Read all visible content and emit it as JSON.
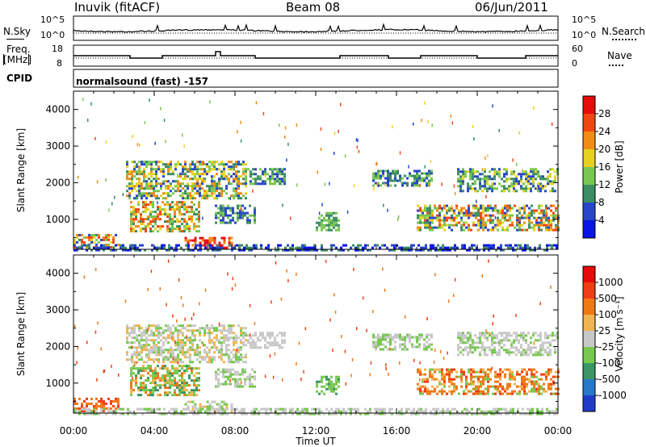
{
  "header": {
    "station": "Inuvik (fitACF)",
    "beam": "Beam 08",
    "date": "06/Jun/2011"
  },
  "panels": {
    "nsky_label": "N.Sky",
    "nsky_ticks": [
      "10^5",
      "10^0"
    ],
    "nsearch_label": "N.Search",
    "nsearch_ticks": [
      "10^5",
      "10^0"
    ],
    "freq_label_line1": "Freq.",
    "freq_label_line2": "[MHz]",
    "freq_ticks": [
      "18",
      "8"
    ],
    "nave_label": "Nave",
    "nave_ticks": [
      "60",
      "0"
    ],
    "cpid_label": "CPID",
    "cpid_text": "normalsound (fast) -157"
  },
  "chart_data": [
    {
      "type": "heatmap",
      "name": "power",
      "ylabel": "Slant Range [km]",
      "yticks": [
        "1000",
        "2000",
        "3000",
        "4000"
      ],
      "ylim": [
        180,
        4500
      ],
      "colorbar_label": "Power [dB]",
      "colorbar_ticks": [
        "4",
        "8",
        "12",
        "16",
        "20",
        "24",
        "28"
      ],
      "colorbar_colors": [
        "#0a14e6",
        "#2846c8",
        "#3c8c64",
        "#78c850",
        "#e6d21e",
        "#f08c14",
        "#f04614",
        "#e60a0a"
      ]
    },
    {
      "type": "heatmap",
      "name": "velocity",
      "ylabel": "Slant Range [km]",
      "yticks": [
        "1000",
        "2000",
        "3000",
        "4000"
      ],
      "ylim": [
        180,
        4500
      ],
      "colorbar_label": "Velocity [m s⁻¹]",
      "colorbar_ticks": [
        "1000",
        "500",
        "100",
        "25",
        "-25",
        "-100",
        "-500",
        "-1000"
      ],
      "colorbar_colors": [
        "#1e3cc8",
        "#2878c8",
        "#3c9664",
        "#78c850",
        "#c8c8c8",
        "#f0b450",
        "#f07814",
        "#f03c14",
        "#e60a0a"
      ],
      "xlabel": "Time UT",
      "xticks": [
        "00:00",
        "04:00",
        "08:00",
        "12:00",
        "16:00",
        "20:00",
        "00:00"
      ]
    }
  ]
}
